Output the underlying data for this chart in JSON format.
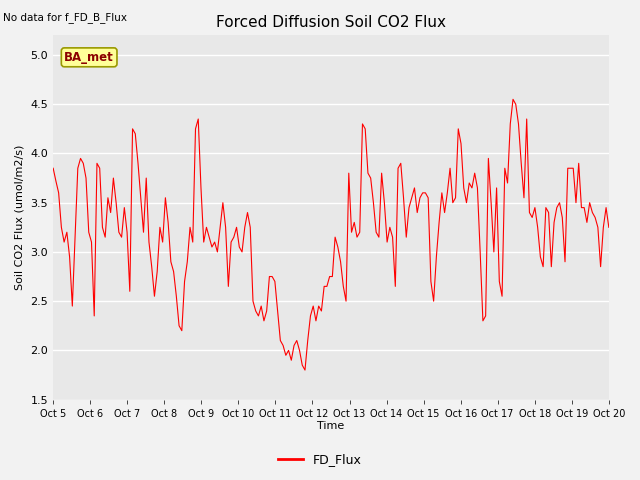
{
  "title": "Forced Diffusion Soil CO2 Flux",
  "ylabel": "Soil CO2 Flux (umol/m2/s)",
  "xlabel": "Time",
  "no_data_text": "No data for f_FD_B_Flux",
  "annotation_text": "BA_met",
  "legend_label": "FD_Flux",
  "ylim": [
    1.5,
    5.2
  ],
  "line_color": "red",
  "bg_color": "#e8e8e8",
  "fig_color": "#f2f2f2",
  "x_tick_labels": [
    "Oct 5",
    "Oct 6",
    "Oct 7",
    "Oct 8",
    "Oct 9",
    "Oct 10",
    "Oct 11",
    "Oct 12",
    "Oct 13",
    "Oct 14",
    "Oct 15",
    "Oct 16",
    "Oct 17",
    "Oct 18",
    "Oct 19",
    "Oct 20"
  ],
  "y_values": [
    3.85,
    3.72,
    3.6,
    3.25,
    3.1,
    3.2,
    2.95,
    2.45,
    3.15,
    3.85,
    3.95,
    3.9,
    3.75,
    3.2,
    3.1,
    2.35,
    3.9,
    3.85,
    3.25,
    3.15,
    3.55,
    3.4,
    3.75,
    3.5,
    3.2,
    3.15,
    3.45,
    3.2,
    2.6,
    4.25,
    4.2,
    3.9,
    3.55,
    3.2,
    3.75,
    3.1,
    2.85,
    2.55,
    2.8,
    3.25,
    3.1,
    3.55,
    3.3,
    2.9,
    2.8,
    2.55,
    2.25,
    2.2,
    2.7,
    2.9,
    3.25,
    3.1,
    4.25,
    4.35,
    3.65,
    3.1,
    3.25,
    3.15,
    3.05,
    3.1,
    3.0,
    3.25,
    3.5,
    3.25,
    2.65,
    3.1,
    3.15,
    3.25,
    3.05,
    3.0,
    3.25,
    3.4,
    3.25,
    2.5,
    2.4,
    2.35,
    2.45,
    2.3,
    2.4,
    2.75,
    2.75,
    2.7,
    2.4,
    2.1,
    2.05,
    1.95,
    2.0,
    1.9,
    2.05,
    2.1,
    2.0,
    1.85,
    1.8,
    2.1,
    2.35,
    2.45,
    2.3,
    2.45,
    2.4,
    2.65,
    2.65,
    2.75,
    2.75,
    3.15,
    3.05,
    2.9,
    2.65,
    2.5,
    3.8,
    3.2,
    3.3,
    3.15,
    3.2,
    4.3,
    4.25,
    3.8,
    3.75,
    3.5,
    3.2,
    3.15,
    3.8,
    3.5,
    3.1,
    3.25,
    3.15,
    2.65,
    3.85,
    3.9,
    3.55,
    3.15,
    3.45,
    3.55,
    3.65,
    3.4,
    3.55,
    3.6,
    3.6,
    3.55,
    2.7,
    2.5,
    2.95,
    3.3,
    3.6,
    3.4,
    3.6,
    3.85,
    3.5,
    3.55,
    4.25,
    4.1,
    3.65,
    3.5,
    3.7,
    3.65,
    3.8,
    3.65,
    3.0,
    2.3,
    2.35,
    3.95,
    3.5,
    3.0,
    3.65,
    2.7,
    2.55,
    3.85,
    3.7,
    4.3,
    4.55,
    4.5,
    4.3,
    3.9,
    3.55,
    4.35,
    3.4,
    3.35,
    3.45,
    3.25,
    2.95,
    2.85,
    3.45,
    3.4,
    2.85,
    3.3,
    3.45,
    3.5,
    3.35,
    2.9,
    3.85,
    3.85,
    3.85,
    3.5,
    3.9,
    3.45,
    3.45,
    3.3,
    3.5,
    3.4,
    3.35,
    3.25,
    2.85,
    3.25,
    3.45,
    3.25
  ]
}
